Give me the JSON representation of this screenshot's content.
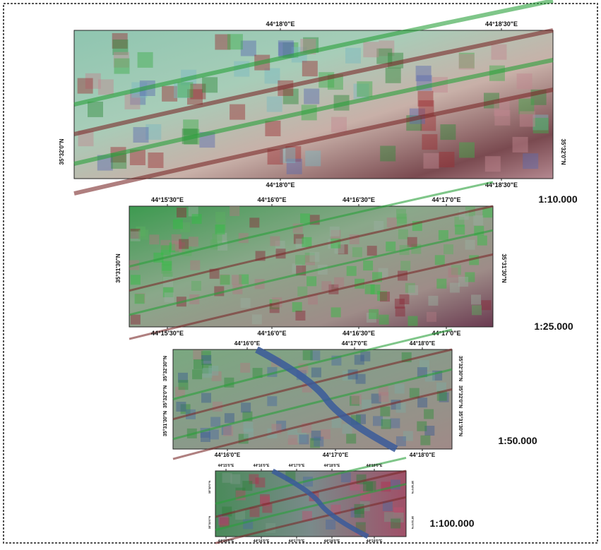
{
  "panels": [
    {
      "scale": null,
      "top_labels": [
        "44°18'0\"E",
        "44°18'30\"E"
      ],
      "bottom_labels": [
        "44°18'0\"E",
        "44°18'30\"E"
      ],
      "left_labels": [
        "35°32'0\"N"
      ],
      "right_labels": [
        "35°32'0\"N"
      ]
    },
    {
      "scale": "1:25.000",
      "top_labels": [
        "44°15'30\"E",
        "44°16'0\"E",
        "44°16'30\"E",
        "44°17'0\"E"
      ],
      "bottom_labels": [
        "44°15'30\"E",
        "44°16'0\"E",
        "44°16'30\"E",
        "44°17'0\"E"
      ],
      "left_labels": [
        "35°31'30\"N"
      ],
      "right_labels": [
        "35°31'30\"N"
      ]
    },
    {
      "scale": "1:50.000",
      "top_labels": [
        "44°16'0\"E",
        "44°17'0\"E",
        "44°18'0\"E"
      ],
      "bottom_labels": [
        "44°16'0\"E",
        "44°17'0\"E",
        "44°18'0\"E"
      ],
      "left_labels": [
        "35°31'30\"N",
        "35°32'0\"N",
        "35°32'30\"N"
      ],
      "right_labels": [
        "35°31'30\"N",
        "35°32'0\"N",
        "35°32'30\"N"
      ]
    },
    {
      "scale": "1:100.000",
      "top_labels": [
        "44°15'0\"E",
        "44°16'0\"E",
        "44°17'0\"E",
        "44°18'0\"E",
        "44°19'0\"E"
      ],
      "bottom_labels": [
        "44°15'0\"E",
        "44°16'0\"E",
        "44°17'0\"E",
        "44°18'0\"E",
        "44°19'0\"E"
      ],
      "left_labels": [
        "35°31'0\"N",
        "35°32'0\"N"
      ],
      "right_labels": [
        "35°31'0\"N",
        "35°32'0\"N"
      ]
    }
  ],
  "scale_first": "1:10.000"
}
